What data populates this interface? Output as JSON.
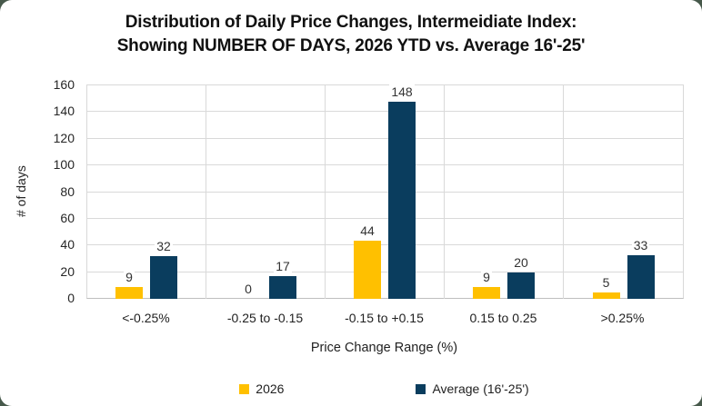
{
  "style": {
    "outer_background": "#47594b",
    "card_background": "#ffffff",
    "gridline_color": "#d9d9d9",
    "axis_line_color": "#bfbfbf",
    "text_color": "#1f1f1f",
    "series_2026_color": "#FFC000",
    "series_average_color": "#0A3D5E"
  },
  "title": {
    "line1": "Distribution of Daily Price Changes, Intermeidiate Index:",
    "line2": "Showing NUMBER OF DAYS, 2026 YTD vs. Average 16'-25'"
  },
  "chart_data": {
    "type": "bar",
    "title": "Distribution of Daily Price Changes, Intermeidiate Index: Showing NUMBER OF DAYS, 2026 YTD vs. Average 16'-25'",
    "categories": [
      "<-0.25%",
      "-0.25 to -0.15",
      "-0.15 to +0.15",
      "0.15 to 0.25",
      ">0.25%"
    ],
    "series": [
      {
        "name": "2026",
        "color": "#FFC000",
        "values": [
          9,
          0,
          44,
          9,
          5
        ]
      },
      {
        "name": "Average (16'-25')",
        "color": "#0A3D5E",
        "values": [
          32,
          17,
          148,
          20,
          33
        ]
      }
    ],
    "xlabel": "Price Change Range (%)",
    "ylabel": "# of days",
    "ylim": [
      0,
      160
    ],
    "yticks": [
      0,
      20,
      40,
      60,
      80,
      100,
      120,
      140,
      160
    ],
    "grid": true,
    "data_labels": true,
    "legend_position": "bottom"
  }
}
